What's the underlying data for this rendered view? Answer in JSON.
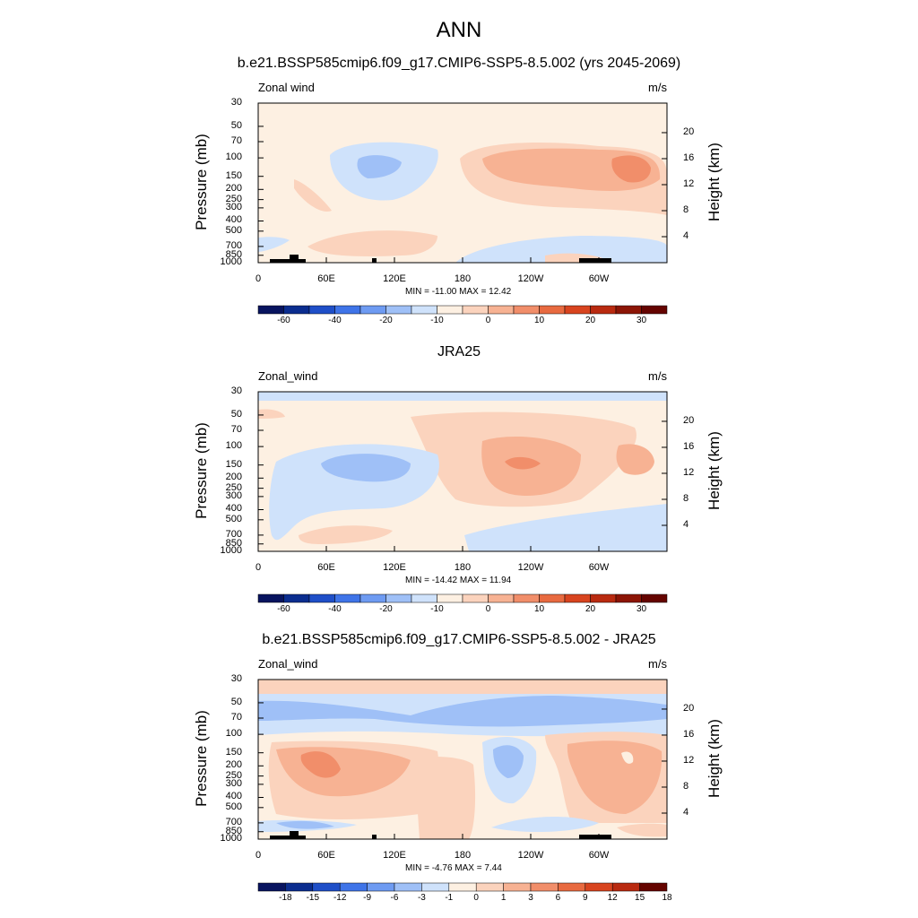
{
  "title": "ANN",
  "colors": {
    "land": "#000000",
    "frame": "#000000",
    "abs_palette": [
      "#08145f",
      "#0b2d8f",
      "#1f4fc8",
      "#3f74e8",
      "#6e9bf2",
      "#9fc0f7",
      "#cfe2fb",
      "#fdf0e2",
      "#fbd3bd",
      "#f7b293",
      "#f18e6a",
      "#e86a40",
      "#d8441f",
      "#b92a10",
      "#8c1506",
      "#650400"
    ],
    "diff_palette": [
      "#08145f",
      "#0b2d8f",
      "#1f4fc8",
      "#3f74e8",
      "#6e9bf2",
      "#9fc0f7",
      "#cfe2fb",
      "#fdf0e2",
      "#fbd3bd",
      "#f7b293",
      "#f18e6a",
      "#e86a40",
      "#d8441f",
      "#b92a10",
      "#650400"
    ]
  },
  "panels": [
    {
      "title": "b.e21.BSSP585cmip6.f09_g17.CMIP6-SSP5-8.5.002 (yrs 2045-2069)",
      "variable": "Zonal wind",
      "units": "m/s",
      "stats": "MIN = -11.00  MAX =  12.42",
      "cb_labels": [
        "-60",
        "-40",
        "-20",
        "-10",
        "0",
        "10",
        "20",
        "30"
      ]
    },
    {
      "title": "JRA25",
      "variable": "Zonal_wind",
      "units": "m/s",
      "stats": "MIN = -14.42  MAX =  11.94",
      "cb_labels": [
        "-60",
        "-40",
        "-20",
        "-10",
        "0",
        "10",
        "20",
        "30"
      ]
    },
    {
      "title": "b.e21.BSSP585cmip6.f09_g17.CMIP6-SSP5-8.5.002 - JRA25",
      "variable": "Zonal_wind",
      "units": "m/s",
      "stats": "MIN =  -4.76  MAX =   7.44",
      "cb_labels": [
        "-18",
        "-15",
        "-12",
        "-9",
        "-6",
        "-3",
        "-1",
        "0",
        "1",
        "3",
        "6",
        "9",
        "12",
        "15",
        "18"
      ]
    }
  ],
  "axes": {
    "ylabel_left": "Pressure (mb)",
    "ylabel_right": "Height (km)",
    "pressure_ticks": [
      "30",
      "50",
      "70",
      "100",
      "150",
      "200",
      "250",
      "300",
      "400",
      "500",
      "700",
      "850",
      "1000"
    ],
    "height_ticks": [
      "20",
      "16",
      "12",
      "8",
      "4"
    ],
    "lon_ticks": [
      "0",
      "60E",
      "120E",
      "180",
      "120W",
      "60W"
    ]
  },
  "chart_data": [
    {
      "type": "heatmap",
      "title": "b.e21.BSSP585cmip6.f09_g17.CMIP6-SSP5-8.5.002 (yrs 2045-2069)",
      "variable": "Zonal wind",
      "units": "m/s",
      "x_axis": "longitude",
      "xlim": [
        0,
        360
      ],
      "y_axis": "pressure (mb), log scale",
      "ylim": [
        1000,
        30
      ],
      "min": -11.0,
      "max": 12.42,
      "contour_levels": [
        -60,
        -40,
        -20,
        -10,
        0,
        10,
        20,
        30
      ],
      "features": [
        {
          "region": "around 100-150 mb, 60E-150E",
          "value_range": "-10 to -5"
        },
        {
          "region": "around 100-200 mb, 150W-60W",
          "value_range": "5 to 12.4"
        },
        {
          "region": "near surface, 180-60W",
          "value_range": "-5 to 0"
        }
      ]
    },
    {
      "type": "heatmap",
      "title": "JRA25",
      "variable": "Zonal_wind",
      "units": "m/s",
      "x_axis": "longitude",
      "xlim": [
        0,
        360
      ],
      "y_axis": "pressure (mb), log scale",
      "ylim": [
        1000,
        30
      ],
      "min": -14.42,
      "max": 11.94,
      "contour_levels": [
        -60,
        -40,
        -20,
        -10,
        0,
        10,
        20,
        30
      ],
      "features": [
        {
          "region": "around 150 mb, 60E-140E",
          "value_range": "-10 to -5"
        },
        {
          "region": "around 150 mb, 150W-120W",
          "value_range": "5 to 11.9"
        },
        {
          "region": "30 mb, all longitudes",
          "value_range": "-5 to 0"
        }
      ]
    },
    {
      "type": "heatmap",
      "title": "b.e21.BSSP585cmip6.f09_g17.CMIP6-SSP5-8.5.002 - JRA25",
      "variable": "Zonal_wind",
      "units": "m/s",
      "x_axis": "longitude",
      "xlim": [
        0,
        360
      ],
      "y_axis": "pressure (mb), log scale",
      "ylim": [
        1000,
        30
      ],
      "min": -4.76,
      "max": 7.44,
      "contour_levels": [
        -18,
        -15,
        -12,
        -9,
        -6,
        -3,
        -1,
        0,
        1,
        3,
        6,
        9,
        12,
        15,
        18
      ],
      "features": [
        {
          "region": "50-70 mb, all longitudes",
          "value_range": "-3 to -1"
        },
        {
          "region": "150-300 mb, 0-120E",
          "value_range": "1 to 7.4"
        },
        {
          "region": "150-300 mb, 120W-0",
          "value_range": "1 to 6"
        },
        {
          "region": "150-250 mb, 180-150W",
          "value_range": "-3 to -1"
        }
      ]
    }
  ]
}
